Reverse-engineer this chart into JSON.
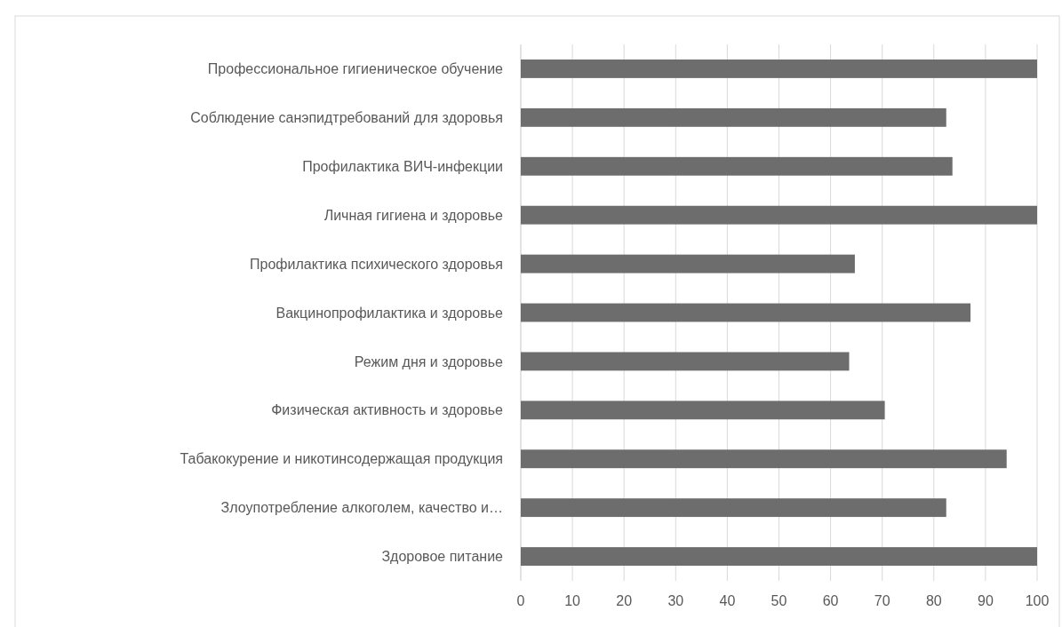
{
  "chart_data": {
    "type": "bar",
    "orientation": "horizontal",
    "categories": [
      "Профессиональное гигиеническое обучение",
      "Соблюдение санэпидтребований для здоровья",
      "Профилактика ВИЧ-инфекции",
      "Личная гигиена и здоровье",
      "Профилактика психического здоровья",
      "Вакцинопрофилактика и здоровье",
      "Режим дня и здоровье",
      "Физическая активность и здоровье",
      "Табакокурение и никотинсодержащая продукция",
      "Злоупотребление алкоголем, качество и…",
      "Здоровое питание"
    ],
    "values": [
      100,
      82.4,
      83.6,
      100,
      64.7,
      87.1,
      63.6,
      70.5,
      94.1,
      82.4,
      100
    ],
    "color": "#6d6d6d",
    "xlim": [
      0,
      100
    ],
    "xticks": [
      0,
      10,
      20,
      30,
      40,
      50,
      60,
      70,
      80,
      90,
      100
    ],
    "grid": "x"
  }
}
